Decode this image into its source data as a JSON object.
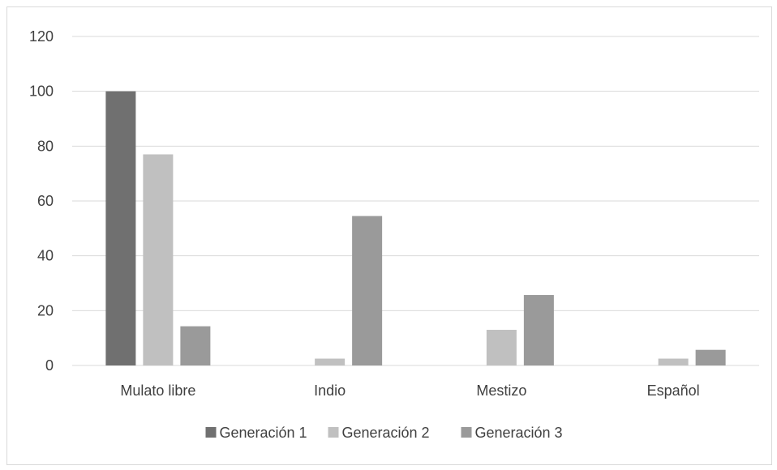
{
  "chart_data": {
    "type": "bar",
    "title": "",
    "xlabel": "",
    "ylabel": "",
    "categories": [
      "Mulato libre",
      "Indio",
      "Mestizo",
      "Español"
    ],
    "series": [
      {
        "name": "Generación 1",
        "values": [
          100,
          0,
          0,
          0
        ]
      },
      {
        "name": "Generación 2",
        "values": [
          77,
          2.5,
          13,
          2.5
        ]
      },
      {
        "name": "Generación 3",
        "values": [
          14.3,
          54.5,
          25.7,
          5.7
        ]
      }
    ],
    "ylim": [
      0,
      120
    ],
    "yticks": [
      "0",
      "20",
      "40",
      "60",
      "80",
      "100",
      "120"
    ],
    "grid": true,
    "legend_position": "bottom",
    "colors": [
      "#707070",
      "#c0c0c0",
      "#9a9a9a"
    ]
  }
}
